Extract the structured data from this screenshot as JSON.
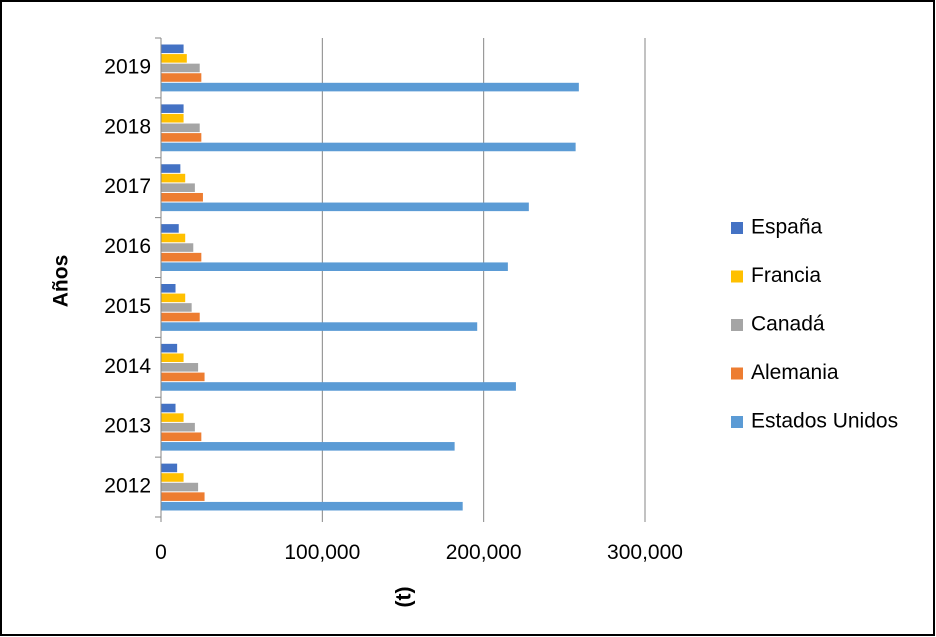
{
  "chart_data": {
    "type": "bar",
    "orientation": "horizontal",
    "categories": [
      "2012",
      "2013",
      "2014",
      "2015",
      "2016",
      "2017",
      "2018",
      "2019"
    ],
    "series": [
      {
        "name": "España",
        "color": "#4472C4",
        "values": [
          10000,
          9000,
          10000,
          9000,
          11000,
          12000,
          14000,
          14000
        ]
      },
      {
        "name": "Francia",
        "color": "#FFC000",
        "values": [
          14000,
          14000,
          14000,
          15000,
          15000,
          15000,
          14000,
          16000
        ]
      },
      {
        "name": "Canadá",
        "color": "#A5A5A5",
        "values": [
          23000,
          21000,
          23000,
          19000,
          20000,
          21000,
          24000,
          24000
        ]
      },
      {
        "name": "Alemania",
        "color": "#ED7D31",
        "values": [
          27000,
          25000,
          27000,
          24000,
          25000,
          26000,
          25000,
          25000
        ]
      },
      {
        "name": "Estados Unidos",
        "color": "#5B9BD5",
        "values": [
          187000,
          182000,
          220000,
          196000,
          215000,
          228000,
          257000,
          259000
        ]
      }
    ],
    "xlabel": "(t)",
    "ylabel": "Años",
    "xlim": [
      0,
      300000
    ],
    "xticks": [
      "0",
      "100,000",
      "200,000",
      "300,000"
    ],
    "grid": "vertical",
    "legend_position": "right"
  }
}
